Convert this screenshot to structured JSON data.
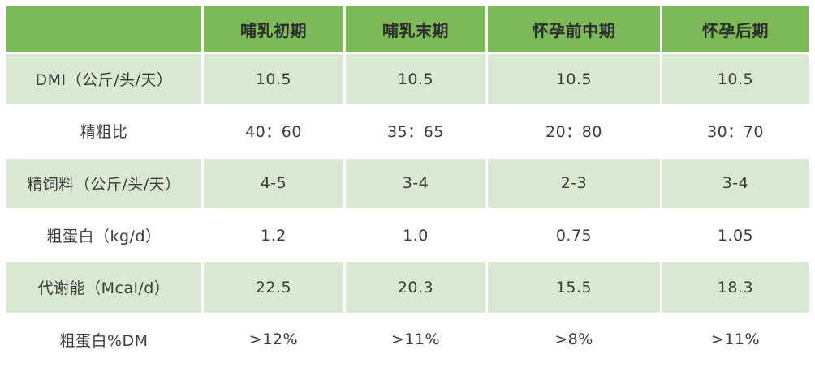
{
  "colors": {
    "header_bg": "#7cba58",
    "row_alt_bg": "#d9e8d0",
    "row_bg": "#ffffff",
    "text": "#3c3c3c",
    "grid_lines": "#ffffff"
  },
  "chart_data": {
    "type": "table",
    "title": "",
    "header": [
      "",
      "哺乳初期",
      "哺乳末期",
      "怀孕前中期",
      "怀孕后期"
    ],
    "rows": [
      {
        "label": "DMI（公斤/头/天）",
        "values": [
          "10.5",
          "10.5",
          "10.5",
          "10.5"
        ]
      },
      {
        "label": "精粗比",
        "values": [
          "40：60",
          "35：65",
          "20：80",
          "30：70"
        ]
      },
      {
        "label": "精饲料（公斤/头/天）",
        "values": [
          "4-5",
          "3-4",
          "2-3",
          "3-4"
        ]
      },
      {
        "label": "粗蛋白（kg/d）",
        "values": [
          "1.2",
          "1.0",
          "0.75",
          "1.05"
        ]
      },
      {
        "label": "代谢能（Mcal/d）",
        "values": [
          "22.5",
          "20.3",
          "15.5",
          "18.3"
        ]
      },
      {
        "label": "粗蛋白%DM",
        "values": [
          ">12%",
          ">11%",
          ">8%",
          ">11%"
        ]
      }
    ]
  }
}
